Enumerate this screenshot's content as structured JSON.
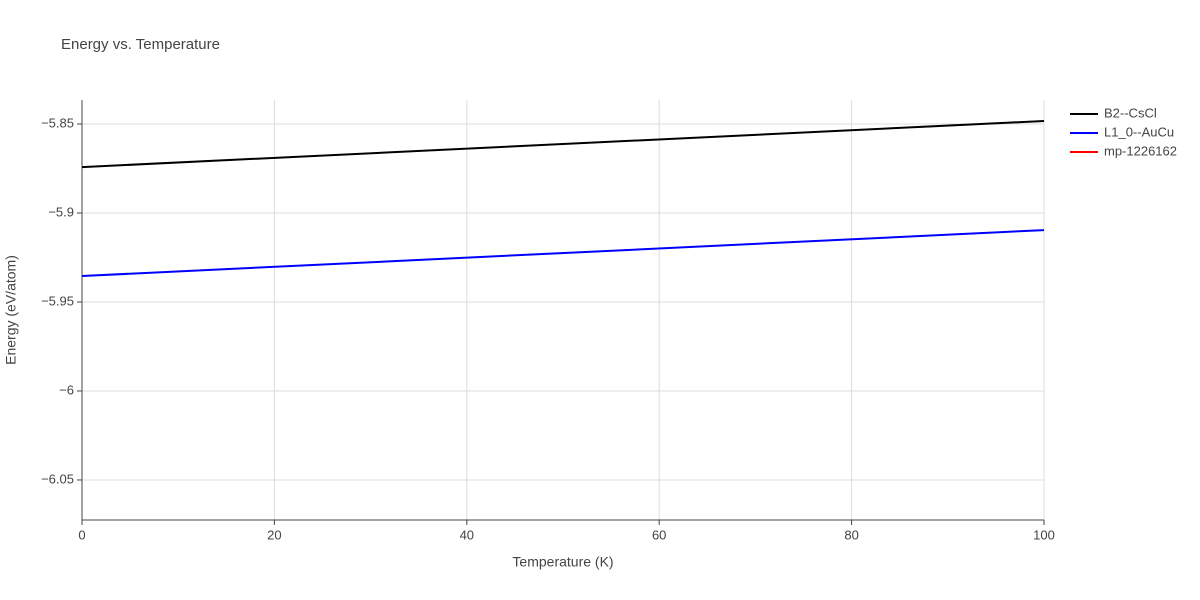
{
  "chart_data": {
    "type": "line",
    "title": "Energy vs. Temperature",
    "x_label": "Temperature (K)",
    "y_label": "Energy (eV/atom)",
    "series": [
      {
        "name": "B2--CsCl",
        "color": "#000000",
        "x": [
          0,
          100
        ],
        "values": [
          -5.8742,
          -5.8483
        ]
      },
      {
        "name": "L1_0--AuCu",
        "color": "#0000ff",
        "x": [
          0,
          100
        ],
        "values": [
          -5.9354,
          -5.9096
        ]
      },
      {
        "name": "mp-1226162",
        "color": "#ff0000",
        "x": [
          0,
          100
        ],
        "values": [
          null,
          null
        ]
      }
    ],
    "xlim": [
      0,
      100
    ],
    "xticks": [
      0,
      20,
      40,
      60,
      80,
      100
    ],
    "ylim": [
      -6.0725,
      -5.8365
    ],
    "yticks": [
      {
        "value": -6.05,
        "label": "−6.05"
      },
      {
        "value": -6.0,
        "label": "−6"
      },
      {
        "value": -5.95,
        "label": "−5.95"
      },
      {
        "value": -5.9,
        "label": "−5.9"
      },
      {
        "value": -5.85,
        "label": "−5.85"
      }
    ],
    "grid": true,
    "legend": "top-right"
  }
}
